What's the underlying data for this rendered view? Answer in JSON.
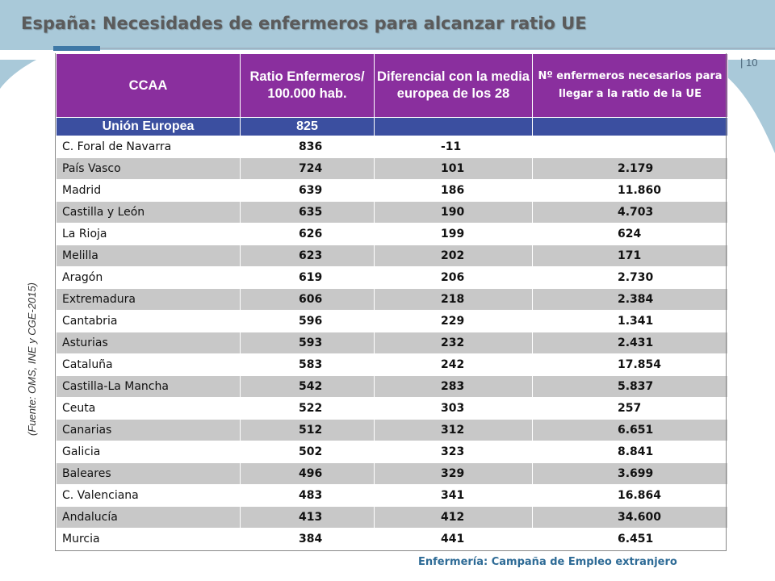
{
  "title": "España: Necesidades de enfermeros para alcanzar ratio UE",
  "page_number": "| 10",
  "source_note": "(Fuente: OMS, INE y CGE-2015)",
  "footer": "Enfermería: Campaña de Empleo extranjero",
  "colors": {
    "header_purple": "#8a2f9e",
    "eu_row_blue": "#3b4fa0",
    "row_shade": "#c8c8c8",
    "background_shape": "#a9c9d9",
    "footer_blue": "#2e6b96"
  },
  "table": {
    "headers": [
      "CCAA",
      "Ratio Enfermeros/ 100.000 hab.",
      "Diferencial con la media europea de los 28",
      "Nº enfermeros necesarios para llegar a la ratio de la UE"
    ],
    "eu_row": [
      "Unión Europea",
      "825",
      "",
      ""
    ],
    "rows": [
      [
        "C. Foral de Navarra",
        "836",
        "-11",
        ""
      ],
      [
        "País Vasco",
        "724",
        "101",
        "2.179"
      ],
      [
        "Madrid",
        "639",
        "186",
        "11.860"
      ],
      [
        "Castilla y León",
        "635",
        "190",
        "4.703"
      ],
      [
        "La Rioja",
        "626",
        "199",
        "624"
      ],
      [
        "Melilla",
        "623",
        "202",
        "171"
      ],
      [
        "Aragón",
        "619",
        "206",
        "2.730"
      ],
      [
        "Extremadura",
        "606",
        "218",
        "2.384"
      ],
      [
        "Cantabria",
        "596",
        "229",
        "1.341"
      ],
      [
        "Asturias",
        "593",
        "232",
        "2.431"
      ],
      [
        "Cataluña",
        "583",
        "242",
        "17.854"
      ],
      [
        "Castilla-La Mancha",
        "542",
        "283",
        "5.837"
      ],
      [
        "Ceuta",
        "522",
        "303",
        "257"
      ],
      [
        "Canarias",
        "512",
        "312",
        "6.651"
      ],
      [
        "Galicia",
        "502",
        "323",
        "8.841"
      ],
      [
        "Baleares",
        "496",
        "329",
        "3.699"
      ],
      [
        "C. Valenciana",
        "483",
        "341",
        "16.864"
      ],
      [
        "Andalucía",
        "413",
        "412",
        "34.600"
      ],
      [
        "Murcia",
        "384",
        "441",
        "6.451"
      ]
    ]
  }
}
